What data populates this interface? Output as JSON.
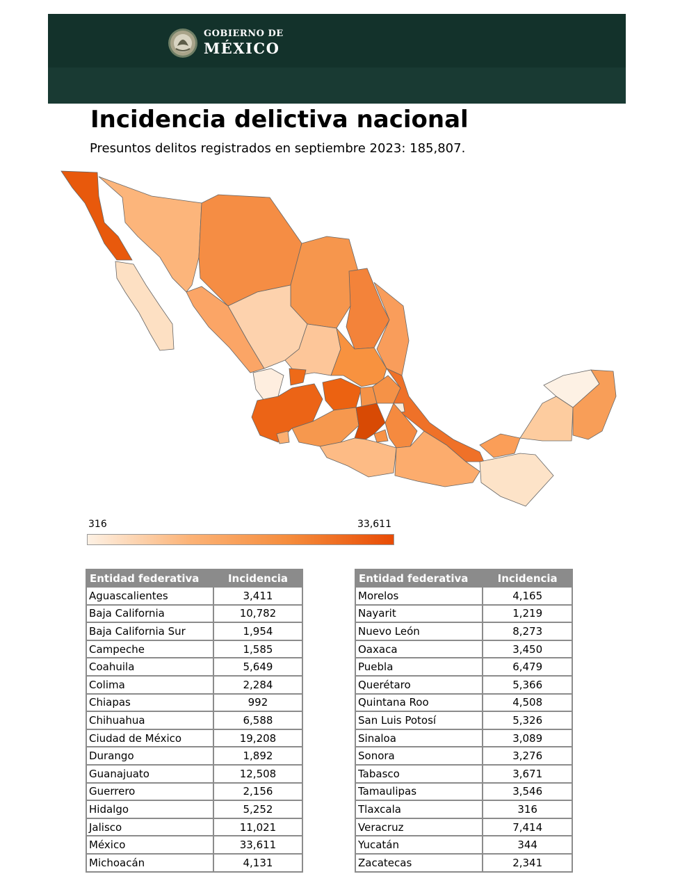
{
  "header": {
    "org_line1": "GOBIERNO DE",
    "org_line2": "MÉXICO",
    "bg_color": "#13322b"
  },
  "title": "Incidencia delictiva nacional",
  "subtitle": "Presuntos delitos registrados en septiembre 2023: 185,807.",
  "legend": {
    "min_label": "316",
    "max_label": "33,611",
    "scale_colors": [
      "#fdf1e4",
      "#fcb377",
      "#f58b3b",
      "#e84b05"
    ]
  },
  "table": {
    "col1_header": "Entidad federativa",
    "col2_header": "Incidencia",
    "left_rows": [
      {
        "entidad": "Aguascalientes",
        "incidencia": "3,411"
      },
      {
        "entidad": "Baja California",
        "incidencia": "10,782"
      },
      {
        "entidad": "Baja California Sur",
        "incidencia": "1,954"
      },
      {
        "entidad": "Campeche",
        "incidencia": "1,585"
      },
      {
        "entidad": "Coahuila",
        "incidencia": "5,649"
      },
      {
        "entidad": "Colima",
        "incidencia": "2,284"
      },
      {
        "entidad": "Chiapas",
        "incidencia": "992"
      },
      {
        "entidad": "Chihuahua",
        "incidencia": "6,588"
      },
      {
        "entidad": "Ciudad de México",
        "incidencia": "19,208"
      },
      {
        "entidad": "Durango",
        "incidencia": "1,892"
      },
      {
        "entidad": "Guanajuato",
        "incidencia": "12,508"
      },
      {
        "entidad": "Guerrero",
        "incidencia": "2,156"
      },
      {
        "entidad": "Hidalgo",
        "incidencia": "5,252"
      },
      {
        "entidad": "Jalisco",
        "incidencia": "11,021"
      },
      {
        "entidad": "México",
        "incidencia": "33,611"
      },
      {
        "entidad": "Michoacán",
        "incidencia": "4,131"
      }
    ],
    "right_rows": [
      {
        "entidad": "Morelos",
        "incidencia": "4,165"
      },
      {
        "entidad": "Nayarit",
        "incidencia": "1,219"
      },
      {
        "entidad": "Nuevo León",
        "incidencia": "8,273"
      },
      {
        "entidad": "Oaxaca",
        "incidencia": "3,450"
      },
      {
        "entidad": "Puebla",
        "incidencia": "6,479"
      },
      {
        "entidad": "Querétaro",
        "incidencia": "5,366"
      },
      {
        "entidad": "Quintana Roo",
        "incidencia": "4,508"
      },
      {
        "entidad": "San Luis Potosí",
        "incidencia": "5,326"
      },
      {
        "entidad": "Sinaloa",
        "incidencia": "3,089"
      },
      {
        "entidad": "Sonora",
        "incidencia": "3,276"
      },
      {
        "entidad": "Tabasco",
        "incidencia": "3,671"
      },
      {
        "entidad": "Tamaulipas",
        "incidencia": "3,546"
      },
      {
        "entidad": "Tlaxcala",
        "incidencia": "316"
      },
      {
        "entidad": "Veracruz",
        "incidencia": "7,414"
      },
      {
        "entidad": "Yucatán",
        "incidencia": "344"
      },
      {
        "entidad": "Zacatecas",
        "incidencia": "2,341"
      }
    ]
  }
}
